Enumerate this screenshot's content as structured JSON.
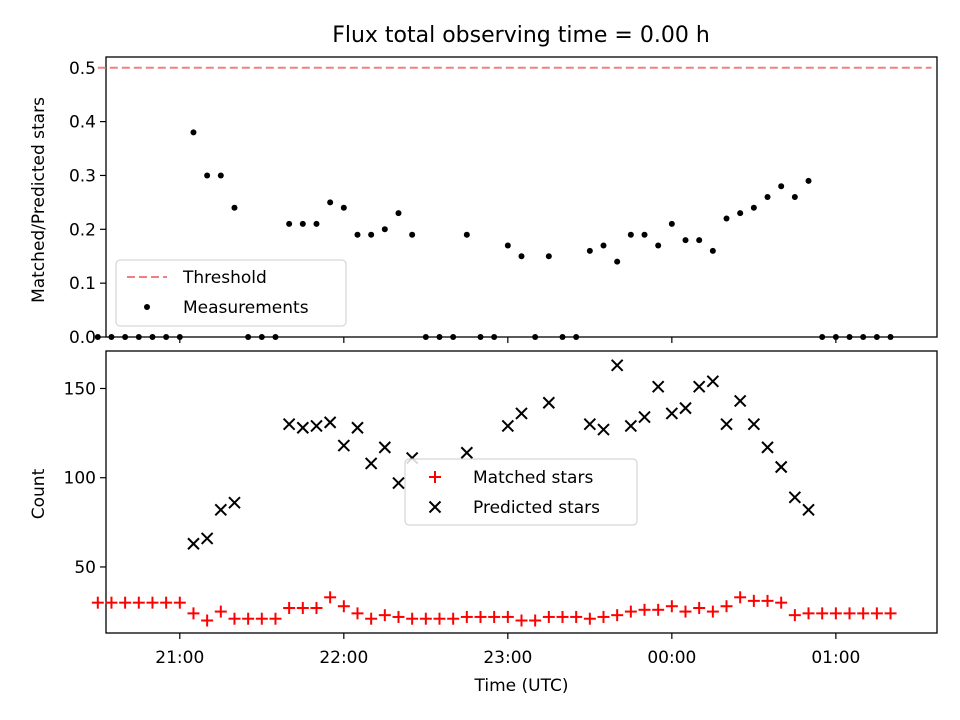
{
  "figure": {
    "title": "Flux total observing time = 0.00 h"
  },
  "chart_data": [
    {
      "type": "scatter",
      "panel": "top",
      "ylabel": "Matched/Predicted stars",
      "ylim": [
        0,
        0.52
      ],
      "yticks": [
        0.0,
        0.1,
        0.2,
        0.3,
        0.4,
        0.5
      ],
      "x_time_range": [
        "20:33",
        "01:37"
      ],
      "xticks": [
        "21:00",
        "22:00",
        "23:00",
        "00:00",
        "01:00"
      ],
      "threshold": {
        "name": "Threshold",
        "value": 0.5,
        "x_start": "20:30",
        "x_end": "01:35",
        "color": "#f08080",
        "style": "dashed"
      },
      "series": [
        {
          "name": "Measurements",
          "color": "#000000",
          "marker": "dot",
          "points": [
            [
              "20:30",
              0
            ],
            [
              "20:35",
              0
            ],
            [
              "20:40",
              0
            ],
            [
              "20:45",
              0
            ],
            [
              "20:50",
              0
            ],
            [
              "20:55",
              0
            ],
            [
              "21:00",
              0
            ],
            [
              "21:05",
              0.38
            ],
            [
              "21:10",
              0.3
            ],
            [
              "21:15",
              0.3
            ],
            [
              "21:20",
              0.24
            ],
            [
              "21:25",
              0
            ],
            [
              "21:30",
              0
            ],
            [
              "21:35",
              0
            ],
            [
              "21:40",
              0.21
            ],
            [
              "21:45",
              0.21
            ],
            [
              "21:50",
              0.21
            ],
            [
              "21:55",
              0.25
            ],
            [
              "22:00",
              0.24
            ],
            [
              "22:05",
              0.19
            ],
            [
              "22:10",
              0.19
            ],
            [
              "22:15",
              0.2
            ],
            [
              "22:20",
              0.23
            ],
            [
              "22:25",
              0.19
            ],
            [
              "22:30",
              0
            ],
            [
              "22:35",
              0
            ],
            [
              "22:40",
              0
            ],
            [
              "22:45",
              0.19
            ],
            [
              "22:50",
              0
            ],
            [
              "22:55",
              0
            ],
            [
              "23:00",
              0.17
            ],
            [
              "23:05",
              0.15
            ],
            [
              "23:10",
              0
            ],
            [
              "23:15",
              0.15
            ],
            [
              "23:20",
              0
            ],
            [
              "23:25",
              0
            ],
            [
              "23:30",
              0.16
            ],
            [
              "23:35",
              0.17
            ],
            [
              "23:40",
              0.14
            ],
            [
              "23:45",
              0.19
            ],
            [
              "23:50",
              0.19
            ],
            [
              "23:55",
              0.17
            ],
            [
              "00:00",
              0.21
            ],
            [
              "00:05",
              0.18
            ],
            [
              "00:10",
              0.18
            ],
            [
              "00:15",
              0.16
            ],
            [
              "00:20",
              0.22
            ],
            [
              "00:25",
              0.23
            ],
            [
              "00:30",
              0.24
            ],
            [
              "00:35",
              0.26
            ],
            [
              "00:40",
              0.28
            ],
            [
              "00:45",
              0.26
            ],
            [
              "00:50",
              0.29
            ],
            [
              "00:55",
              0
            ],
            [
              "01:00",
              0
            ],
            [
              "01:05",
              0
            ],
            [
              "01:10",
              0
            ],
            [
              "01:15",
              0
            ],
            [
              "01:20",
              0
            ]
          ]
        }
      ],
      "legend": {
        "position": "lower-left",
        "entries": [
          "Threshold",
          "Measurements"
        ]
      }
    },
    {
      "type": "scatter",
      "panel": "bottom",
      "xlabel": "Time (UTC)",
      "ylabel": "Count",
      "ylim": [
        13,
        171
      ],
      "yticks": [
        50,
        100,
        150
      ],
      "x_time_range": [
        "20:33",
        "01:37"
      ],
      "xticks": [
        "21:00",
        "22:00",
        "23:00",
        "00:00",
        "01:00"
      ],
      "series": [
        {
          "name": "Matched stars",
          "color": "#ff0000",
          "marker": "plus",
          "points": [
            [
              "20:30",
              30
            ],
            [
              "20:35",
              30
            ],
            [
              "20:40",
              30
            ],
            [
              "20:45",
              30
            ],
            [
              "20:50",
              30
            ],
            [
              "20:55",
              30
            ],
            [
              "21:00",
              30
            ],
            [
              "21:05",
              24
            ],
            [
              "21:10",
              20
            ],
            [
              "21:15",
              25
            ],
            [
              "21:20",
              21
            ],
            [
              "21:25",
              21
            ],
            [
              "21:30",
              21
            ],
            [
              "21:35",
              21
            ],
            [
              "21:40",
              27
            ],
            [
              "21:45",
              27
            ],
            [
              "21:50",
              27
            ],
            [
              "21:55",
              33
            ],
            [
              "22:00",
              28
            ],
            [
              "22:05",
              24
            ],
            [
              "22:10",
              21
            ],
            [
              "22:15",
              23
            ],
            [
              "22:20",
              22
            ],
            [
              "22:25",
              21
            ],
            [
              "22:30",
              21
            ],
            [
              "22:35",
              21
            ],
            [
              "22:40",
              21
            ],
            [
              "22:45",
              22
            ],
            [
              "22:50",
              22
            ],
            [
              "22:55",
              22
            ],
            [
              "23:00",
              22
            ],
            [
              "23:05",
              20
            ],
            [
              "23:10",
              20
            ],
            [
              "23:15",
              22
            ],
            [
              "23:20",
              22
            ],
            [
              "23:25",
              22
            ],
            [
              "23:30",
              21
            ],
            [
              "23:35",
              22
            ],
            [
              "23:40",
              23
            ],
            [
              "23:45",
              25
            ],
            [
              "23:50",
              26
            ],
            [
              "23:55",
              26
            ],
            [
              "00:00",
              28
            ],
            [
              "00:05",
              25
            ],
            [
              "00:10",
              27
            ],
            [
              "00:15",
              25
            ],
            [
              "00:20",
              28
            ],
            [
              "00:25",
              33
            ],
            [
              "00:30",
              31
            ],
            [
              "00:35",
              31
            ],
            [
              "00:40",
              30
            ],
            [
              "00:45",
              23
            ],
            [
              "00:50",
              24
            ],
            [
              "00:55",
              24
            ],
            [
              "01:00",
              24
            ],
            [
              "01:05",
              24
            ],
            [
              "01:10",
              24
            ],
            [
              "01:15",
              24
            ],
            [
              "01:20",
              24
            ]
          ]
        },
        {
          "name": "Predicted stars",
          "color": "#000000",
          "marker": "x",
          "points": [
            [
              "21:05",
              63
            ],
            [
              "21:10",
              66
            ],
            [
              "21:15",
              82
            ],
            [
              "21:20",
              86
            ],
            [
              "21:40",
              130
            ],
            [
              "21:45",
              128
            ],
            [
              "21:50",
              129
            ],
            [
              "21:55",
              131
            ],
            [
              "22:00",
              118
            ],
            [
              "22:05",
              128
            ],
            [
              "22:10",
              108
            ],
            [
              "22:15",
              117
            ],
            [
              "22:20",
              97
            ],
            [
              "22:25",
              111
            ],
            [
              "22:45",
              114
            ],
            [
              "23:00",
              129
            ],
            [
              "23:05",
              136
            ],
            [
              "23:15",
              142
            ],
            [
              "23:30",
              130
            ],
            [
              "23:35",
              127
            ],
            [
              "23:40",
              163
            ],
            [
              "23:45",
              129
            ],
            [
              "23:50",
              134
            ],
            [
              "23:55",
              151
            ],
            [
              "00:00",
              136
            ],
            [
              "00:05",
              139
            ],
            [
              "00:10",
              151
            ],
            [
              "00:15",
              154
            ],
            [
              "00:20",
              130
            ],
            [
              "00:25",
              143
            ],
            [
              "00:30",
              130
            ],
            [
              "00:35",
              117
            ],
            [
              "00:40",
              106
            ],
            [
              "00:45",
              89
            ],
            [
              "00:50",
              82
            ]
          ]
        }
      ],
      "legend": {
        "position": "center",
        "entries": [
          "Matched stars",
          "Predicted stars"
        ]
      }
    }
  ]
}
